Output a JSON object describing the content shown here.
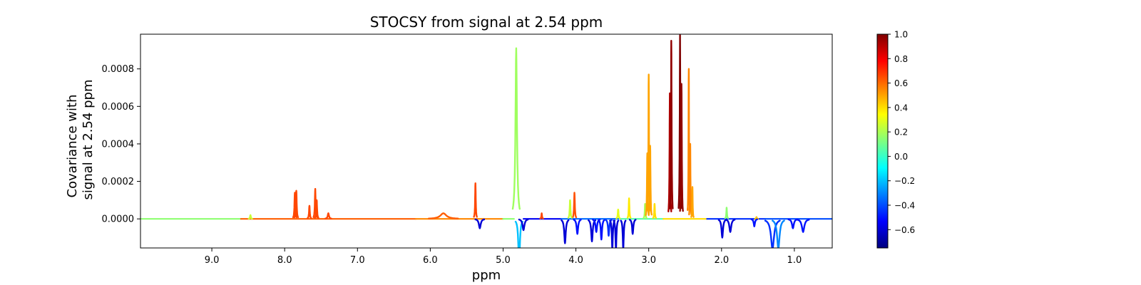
{
  "chart_data": {
    "type": "line",
    "title": "STOCSY from signal at 2.54 ppm",
    "xlabel": "ppm",
    "ylabel_lines": [
      "Covariance with",
      "signal at 2.54 ppm"
    ],
    "xlim": [
      9.98,
      0.48
    ],
    "ylim": [
      -0.000155,
      0.000985
    ],
    "x_ticks": [
      9.0,
      8.0,
      7.0,
      6.0,
      5.0,
      4.0,
      3.0,
      2.0,
      1.0
    ],
    "x_tick_labels": [
      "9.0",
      "8.0",
      "7.0",
      "6.0",
      "5.0",
      "4.0",
      "3.0",
      "2.0",
      "1.0"
    ],
    "y_ticks": [
      0.0,
      0.0002,
      0.0004,
      0.0006,
      0.0008
    ],
    "y_tick_labels": [
      "0.0000",
      "0.0002",
      "0.0004",
      "0.0006",
      "0.0008"
    ],
    "grid": false,
    "colormap": "jet",
    "colorbar": {
      "range": [
        -0.75,
        1.0
      ],
      "ticks": [
        -0.6,
        -0.4,
        -0.2,
        0.0,
        0.2,
        0.4,
        0.6,
        0.8,
        1.0
      ],
      "tick_labels": [
        "−0.6",
        "−0.4",
        "−0.2",
        "0.0",
        "0.2",
        "0.4",
        "0.6",
        "0.8",
        "1.0"
      ]
    },
    "baseline_segments": [
      {
        "x": [
          9.98,
          8.6
        ],
        "y": 0.0,
        "corr": 0.15
      },
      {
        "x": [
          8.6,
          6.2
        ],
        "y": 0.0,
        "corr": 0.62
      },
      {
        "x": [
          6.2,
          5.0
        ],
        "y": 0.0,
        "corr": 0.55
      },
      {
        "x": [
          5.0,
          4.85
        ],
        "y": 0.0,
        "corr": 0.15
      },
      {
        "x": [
          4.72,
          4.2
        ],
        "y": 0.0,
        "corr": -0.55
      },
      {
        "x": [
          4.2,
          3.4
        ],
        "y": 0.0,
        "corr": -0.35
      },
      {
        "x": [
          3.4,
          2.8
        ],
        "y": 0.0,
        "corr": 0.05
      },
      {
        "x": [
          2.8,
          2.2
        ],
        "y": 0.0,
        "corr": 0.4
      },
      {
        "x": [
          2.2,
          1.4
        ],
        "y": 0.0,
        "corr": -0.45
      },
      {
        "x": [
          1.4,
          0.48
        ],
        "y": 0.0,
        "corr": -0.4
      }
    ],
    "series": [
      {
        "shape": "bump",
        "center": 5.82,
        "height": 3e-05,
        "width": 0.05,
        "corr": 0.62
      },
      {
        "shape": "peak",
        "center": 8.47,
        "height": 2e-05,
        "width": 0.006,
        "corr": 0.25
      },
      {
        "shape": "peak",
        "center": 7.86,
        "height": 0.00014,
        "width": 0.006,
        "corr": 0.66
      },
      {
        "shape": "peak",
        "center": 7.84,
        "height": 0.00015,
        "width": 0.006,
        "corr": 0.66
      },
      {
        "shape": "peak",
        "center": 7.66,
        "height": 7e-05,
        "width": 0.006,
        "corr": 0.66
      },
      {
        "shape": "peak",
        "center": 7.58,
        "height": 0.00016,
        "width": 0.006,
        "corr": 0.66
      },
      {
        "shape": "peak",
        "center": 7.56,
        "height": 0.0001,
        "width": 0.006,
        "corr": 0.66
      },
      {
        "shape": "peak",
        "center": 7.4,
        "height": 3e-05,
        "width": 0.01,
        "corr": 0.66
      },
      {
        "shape": "peak",
        "center": 5.38,
        "height": 0.00019,
        "width": 0.005,
        "corr": 0.66
      },
      {
        "shape": "peak",
        "center": 4.82,
        "height": 0.00091,
        "width": 0.012,
        "corr": 0.18
      },
      {
        "shape": "peak",
        "center": 4.02,
        "height": 0.00014,
        "width": 0.006,
        "corr": 0.64
      },
      {
        "shape": "peak",
        "center": 4.08,
        "height": 0.0001,
        "width": 0.006,
        "corr": 0.25
      },
      {
        "shape": "peak",
        "center": 3.42,
        "height": 5e-05,
        "width": 0.006,
        "corr": 0.3
      },
      {
        "shape": "peak",
        "center": 3.27,
        "height": 0.00011,
        "width": 0.005,
        "corr": 0.38
      },
      {
        "shape": "peak",
        "center": 3.05,
        "height": 8e-05,
        "width": 0.005,
        "corr": 0.2
      },
      {
        "shape": "peak",
        "center": 3.02,
        "height": 0.00035,
        "width": 0.005,
        "corr": 0.5
      },
      {
        "shape": "peak",
        "center": 3.0,
        "height": 0.00077,
        "width": 0.005,
        "corr": 0.5
      },
      {
        "shape": "peak",
        "center": 2.98,
        "height": 0.00039,
        "width": 0.005,
        "corr": 0.5
      },
      {
        "shape": "peak",
        "center": 2.92,
        "height": 8e-05,
        "width": 0.005,
        "corr": 0.4
      },
      {
        "shape": "peak",
        "center": 2.71,
        "height": 0.00067,
        "width": 0.005,
        "corr": 0.92
      },
      {
        "shape": "peak",
        "center": 2.69,
        "height": 0.00095,
        "width": 0.005,
        "corr": 0.97
      },
      {
        "shape": "peak",
        "center": 2.57,
        "height": 0.00098,
        "width": 0.005,
        "corr": 1.0
      },
      {
        "shape": "peak",
        "center": 2.55,
        "height": 0.00072,
        "width": 0.005,
        "corr": 0.97
      },
      {
        "shape": "peak",
        "center": 2.45,
        "height": 0.0008,
        "width": 0.004,
        "corr": 0.55
      },
      {
        "shape": "peak",
        "center": 2.43,
        "height": 0.0004,
        "width": 0.004,
        "corr": 0.55
      },
      {
        "shape": "peak",
        "center": 2.4,
        "height": 0.00017,
        "width": 0.004,
        "corr": 0.5
      },
      {
        "shape": "peak",
        "center": 1.93,
        "height": 6e-05,
        "width": 0.005,
        "corr": 0.15
      },
      {
        "shape": "peak",
        "center": 1.52,
        "height": 1e-05,
        "width": 0.005,
        "corr": 0.45
      },
      {
        "shape": "peak",
        "center": 4.47,
        "height": 3e-05,
        "width": 0.005,
        "corr": 0.66
      },
      {
        "shape": "dip",
        "center": 4.78,
        "depth": 0.00025,
        "width": 0.012,
        "corr": -0.2
      },
      {
        "shape": "dip",
        "center": 4.72,
        "depth": 6e-05,
        "width": 0.015,
        "corr": -0.6
      },
      {
        "shape": "dip",
        "center": 5.32,
        "depth": 5e-05,
        "width": 0.015,
        "corr": -0.6
      },
      {
        "shape": "dip",
        "center": 4.15,
        "depth": 0.00013,
        "width": 0.012,
        "corr": -0.6
      },
      {
        "shape": "dip",
        "center": 3.98,
        "depth": 8e-05,
        "width": 0.012,
        "corr": -0.5
      },
      {
        "shape": "dip",
        "center": 3.78,
        "depth": 0.00012,
        "width": 0.012,
        "corr": -0.6
      },
      {
        "shape": "dip",
        "center": 3.72,
        "depth": 7e-05,
        "width": 0.012,
        "corr": -0.5
      },
      {
        "shape": "dip",
        "center": 3.65,
        "depth": 0.00011,
        "width": 0.01,
        "corr": -0.5
      },
      {
        "shape": "dip",
        "center": 3.55,
        "depth": 9e-05,
        "width": 0.01,
        "corr": -0.45
      },
      {
        "shape": "dip",
        "center": 3.5,
        "depth": 0.00016,
        "width": 0.008,
        "corr": -0.6
      },
      {
        "shape": "dip",
        "center": 3.45,
        "depth": 0.00016,
        "width": 0.008,
        "corr": -0.6
      },
      {
        "shape": "dip",
        "center": 3.35,
        "depth": 0.00016,
        "width": 0.008,
        "corr": -0.6
      },
      {
        "shape": "dip",
        "center": 3.22,
        "depth": 8e-05,
        "width": 0.01,
        "corr": -0.6
      },
      {
        "shape": "dip",
        "center": 1.99,
        "depth": 0.0001,
        "width": 0.012,
        "corr": -0.6
      },
      {
        "shape": "dip",
        "center": 1.88,
        "depth": 7e-05,
        "width": 0.015,
        "corr": -0.6
      },
      {
        "shape": "dip",
        "center": 1.55,
        "depth": 4e-05,
        "width": 0.01,
        "corr": -0.5
      },
      {
        "shape": "dip",
        "center": 1.3,
        "depth": 0.00016,
        "width": 0.025,
        "corr": -0.45
      },
      {
        "shape": "dip",
        "center": 1.22,
        "depth": 0.00016,
        "width": 0.02,
        "corr": -0.3
      },
      {
        "shape": "dip",
        "center": 1.02,
        "depth": 5e-05,
        "width": 0.015,
        "corr": -0.5
      },
      {
        "shape": "dip",
        "center": 0.88,
        "depth": 7e-05,
        "width": 0.02,
        "corr": -0.5
      }
    ]
  }
}
